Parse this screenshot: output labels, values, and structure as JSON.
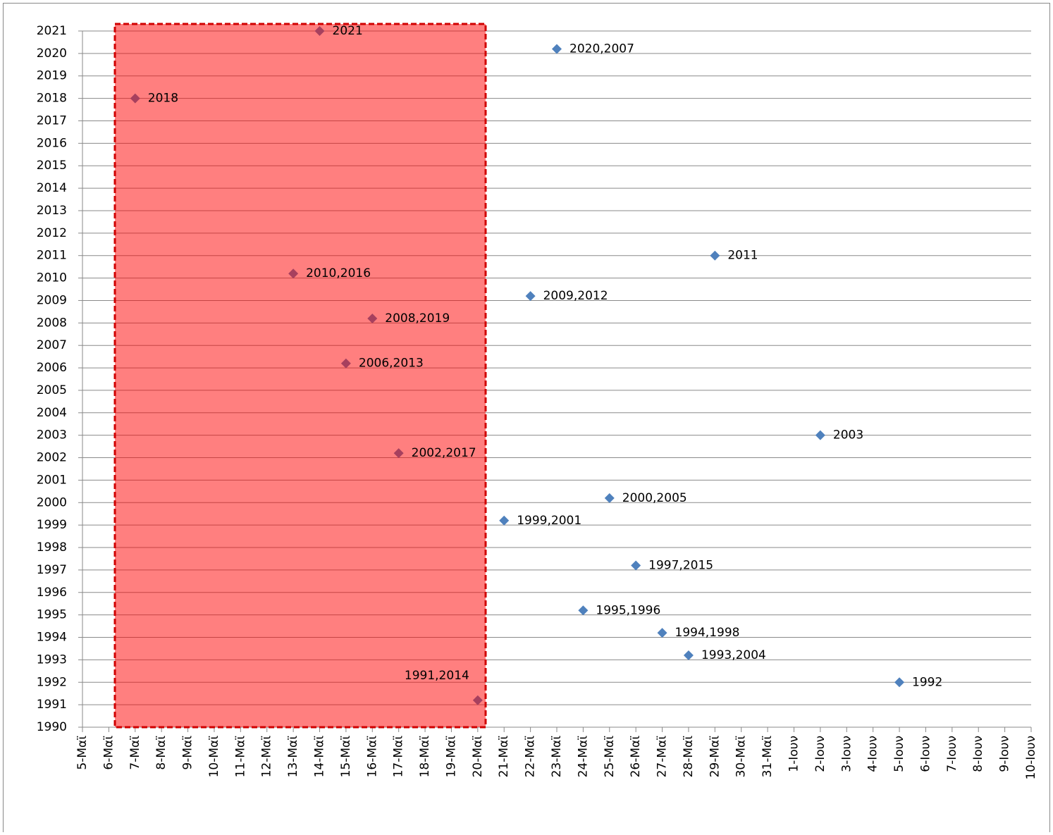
{
  "chart_data": {
    "type": "scatter",
    "categories": [
      "5-Μαϊ",
      "6-Μαϊ",
      "7-Μαϊ",
      "8-Μαϊ",
      "9-Μαϊ",
      "10-Μαϊ",
      "11-Μαϊ",
      "12-Μαϊ",
      "13-Μαϊ",
      "14-Μαϊ",
      "15-Μαϊ",
      "16-Μαϊ",
      "17-Μαϊ",
      "18-Μαϊ",
      "19-Μαϊ",
      "20-Μαϊ",
      "21-Μαϊ",
      "22-Μαϊ",
      "23-Μαϊ",
      "24-Μαϊ",
      "25-Μαϊ",
      "26-Μαϊ",
      "27-Μαϊ",
      "28-Μαϊ",
      "29-Μαϊ",
      "30-Μαϊ",
      "31-Μαϊ",
      "1-Ιουν",
      "2-Ιουν",
      "3-Ιουν",
      "4-Ιουν",
      "5-Ιουν",
      "6-Ιουν",
      "7-Ιουν",
      "8-Ιουν",
      "9-Ιουν",
      "10-Ιουν"
    ],
    "series": [
      {
        "color": "#4f81bd",
        "x": [
          "7-Μαϊ",
          "14-Μαϊ",
          "13-Μαϊ",
          "16-Μαϊ",
          "15-Μαϊ",
          "17-Μαϊ",
          "20-Μαϊ",
          "21-Μαϊ",
          "22-Μαϊ",
          "23-Μαϊ",
          "24-Μαϊ",
          "25-Μαϊ",
          "26-Μαϊ",
          "27-Μαϊ",
          "28-Μαϊ",
          "29-Μαϊ",
          "2-Ιουν",
          "5-Ιουν"
        ],
        "values": [
          2018,
          2021,
          2010.2,
          2008.2,
          2006.2,
          2002.2,
          1991.2,
          1999.2,
          2009.2,
          2020.2,
          1995.2,
          2000.2,
          1997.2,
          1994.2,
          1993.2,
          2011,
          2003,
          1992
        ],
        "labels": [
          "2018",
          "2021",
          "2010,2016",
          "2008,2019",
          "2006,2013",
          "2002,2017",
          "1991,2014",
          "1999,2001",
          "2009,2012",
          "2020,2007",
          "1995,1996",
          "2000,2005",
          "1997,2015",
          "1994,1998",
          "1993,2004",
          "2011",
          "2003",
          "1992"
        ]
      }
    ],
    "ylim": [
      1990,
      2021
    ],
    "yticks": [
      1990,
      1991,
      1992,
      1993,
      1994,
      1995,
      1996,
      1997,
      1998,
      1999,
      2000,
      2001,
      2002,
      2003,
      2004,
      2005,
      2006,
      2007,
      2008,
      2009,
      2010,
      2011,
      2012,
      2013,
      2014,
      2015,
      2016,
      2017,
      2018,
      2019,
      2020,
      2021
    ],
    "grid": true
  }
}
